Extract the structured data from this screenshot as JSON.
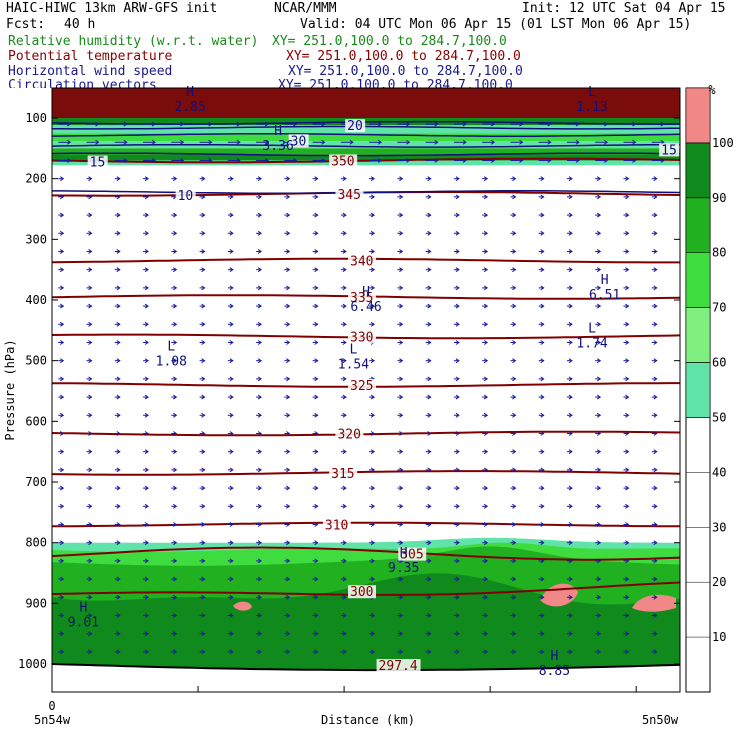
{
  "header": {
    "model": "HAIC-HIWC 13km ARW-GFS init",
    "org": "NCAR/MMM",
    "init": "Init: 12 UTC Sat 04 Apr 15",
    "fcst_label": "Fcst:",
    "fcst_value": "40 h",
    "valid": "Valid: 04 UTC Mon 06 Apr 15 (01 LST Mon 06 Apr 15)"
  },
  "fields": [
    {
      "name": "Relative humidity (w.r.t. water)",
      "xy": "XY= 251.0,100.0 to 284.7,100.0",
      "color": "#1a8a1a"
    },
    {
      "name": "Potential temperature",
      "xy": "XY= 251.0,100.0 to 284.7,100.0",
      "color": "#8b0000"
    },
    {
      "name": "Horizontal wind speed",
      "xy": "XY= 251.0,100.0 to 284.7,100.0",
      "color": "#1a1a8a"
    },
    {
      "name": "Circulation vectors",
      "xy": "XY= 251.0,100.0 to 284.7,100.0",
      "color": "#1a1a8a"
    }
  ],
  "chart_data": {
    "type": "heatmap",
    "xlabel": "Distance (km)",
    "ylabel": "Pressure (hPa)",
    "x_start_tick": "0",
    "x_left_label": "5n54w",
    "x_right_label": "5n50w",
    "y_ticks": [
      100,
      200,
      300,
      400,
      500,
      600,
      700,
      800,
      900,
      1000
    ],
    "colorbar": {
      "unit": "%",
      "ticks": [
        10,
        20,
        30,
        40,
        50,
        60,
        70,
        80,
        90,
        100
      ],
      "levels": [
        {
          "from": 50,
          "to": 60,
          "color": "#5fe3a8"
        },
        {
          "from": 60,
          "to": 70,
          "color": "#7fef7f"
        },
        {
          "from": 70,
          "to": 80,
          "color": "#3fdc3f"
        },
        {
          "from": 80,
          "to": 90,
          "color": "#20b020"
        },
        {
          "from": 90,
          "to": 100,
          "color": "#108a1c"
        },
        {
          "from": 100,
          "to": 110,
          "color": "#f08888"
        }
      ]
    },
    "theta_contours": [
      {
        "label": "350",
        "p": 170
      },
      {
        "label": "345",
        "p": 225
      },
      {
        "label": "340",
        "p": 335
      },
      {
        "label": "335",
        "p": 395
      },
      {
        "label": "330",
        "p": 460
      },
      {
        "label": "325",
        "p": 540
      },
      {
        "label": "320",
        "p": 620
      },
      {
        "label": "315",
        "p": 685
      },
      {
        "label": "310",
        "p": 770
      },
      {
        "label": "305",
        "p": 818
      },
      {
        "label": "300",
        "p": 880
      }
    ],
    "theta_extra_labels": [
      {
        "label": "297.4",
        "x": 0.52,
        "p": 1010
      }
    ],
    "wind_labels": [
      {
        "label": "10",
        "x": 0.2,
        "p": 235
      },
      {
        "label": "15",
        "x": 0.06,
        "p": 180
      },
      {
        "label": "15",
        "x": 0.97,
        "p": 160
      },
      {
        "label": "20",
        "x": 0.47,
        "p": 120
      },
      {
        "label": "30",
        "x": 0.38,
        "p": 145
      }
    ],
    "extrema": [
      {
        "kind": "H",
        "value": "2.85",
        "x": 0.22,
        "p": 70
      },
      {
        "kind": "L",
        "value": "1.13",
        "x": 0.86,
        "p": 70
      },
      {
        "kind": "H",
        "value": "3.36",
        "x": 0.36,
        "p": 135
      },
      {
        "kind": "H",
        "value": "6.51",
        "x": 0.88,
        "p": 380
      },
      {
        "kind": "H",
        "value": "6.46",
        "x": 0.5,
        "p": 400
      },
      {
        "kind": "L",
        "value": "1.74",
        "x": 0.86,
        "p": 460
      },
      {
        "kind": "L",
        "value": "1.08",
        "x": 0.19,
        "p": 490
      },
      {
        "kind": "L",
        "value": "1.54",
        "x": 0.48,
        "p": 495
      },
      {
        "kind": "H",
        "value": "9.35",
        "x": 0.56,
        "p": 830
      },
      {
        "kind": "H",
        "value": "9.01",
        "x": 0.05,
        "p": 920
      },
      {
        "kind": "H",
        "value": "8.85",
        "x": 0.8,
        "p": 1000
      }
    ],
    "grid": false,
    "legend": "right"
  }
}
